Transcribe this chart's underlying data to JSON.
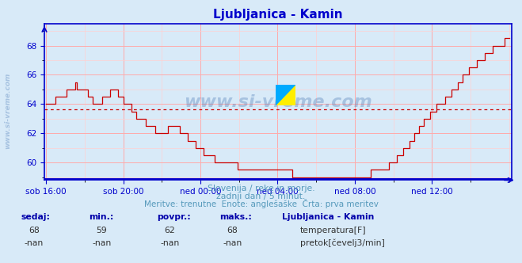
{
  "title": "Ljubljanica - Kamin",
  "title_color": "#0000cc",
  "bg_color": "#d8eaf8",
  "plot_bg_color": "#d8eaf8",
  "grid_color_major": "#ffaaaa",
  "grid_color_minor": "#ffd0d0",
  "x_labels": [
    "sob 16:00",
    "sob 20:00",
    "ned 00:00",
    "ned 04:00",
    "ned 08:00",
    "ned 12:00"
  ],
  "y_ticks": [
    60,
    62,
    64,
    66,
    68
  ],
  "y_min": 58.8,
  "y_max": 69.5,
  "avg_line_y": 63.65,
  "line_color": "#cc0000",
  "line_color_blue": "#0000cc",
  "subtitle1": "Slovenija / reke in morje.",
  "subtitle2": "zadnji dan / 5 minut.",
  "subtitle3": "Meritve: trenutne  Enote: anglešaške  Črta: prva meritev",
  "subtitle_color": "#5599bb",
  "label_color": "#0000aa",
  "watermark": "www.si-vreme.com",
  "watermark_color": "#3366aa",
  "footer_label1": "sedaj:",
  "footer_label2": "min.:",
  "footer_label3": "povpr.:",
  "footer_label4": "maks.:",
  "footer_val1": "68",
  "footer_val2": "59",
  "footer_val3": "62",
  "footer_val4": "68",
  "footer_val1b": "-nan",
  "footer_val2b": "-nan",
  "footer_val3b": "-nan",
  "footer_val4b": "-nan",
  "legend_title": "Ljubljanica - Kamin",
  "legend_entry1": "temperatura[F]",
  "legend_entry2": "pretok[čevelj3/min]",
  "legend_color1": "#cc0000",
  "legend_color2": "#00aa00",
  "axis_color": "#0000cc",
  "tick_color": "#0000cc",
  "n_points": 289
}
